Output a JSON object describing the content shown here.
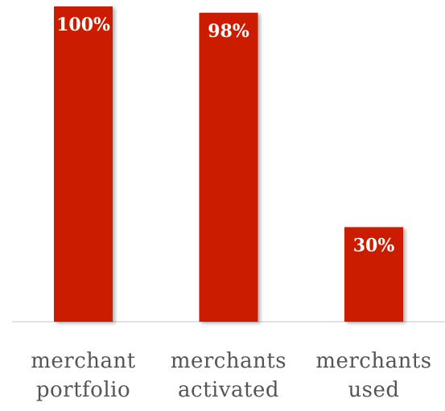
{
  "chart_data": {
    "type": "bar",
    "categories": [
      "merchant portfolio",
      "merchants activated",
      "merchants used"
    ],
    "values": [
      100,
      98,
      30
    ],
    "value_labels": [
      "100%",
      "98%",
      "30%"
    ],
    "color": "#cc1f00"
  }
}
